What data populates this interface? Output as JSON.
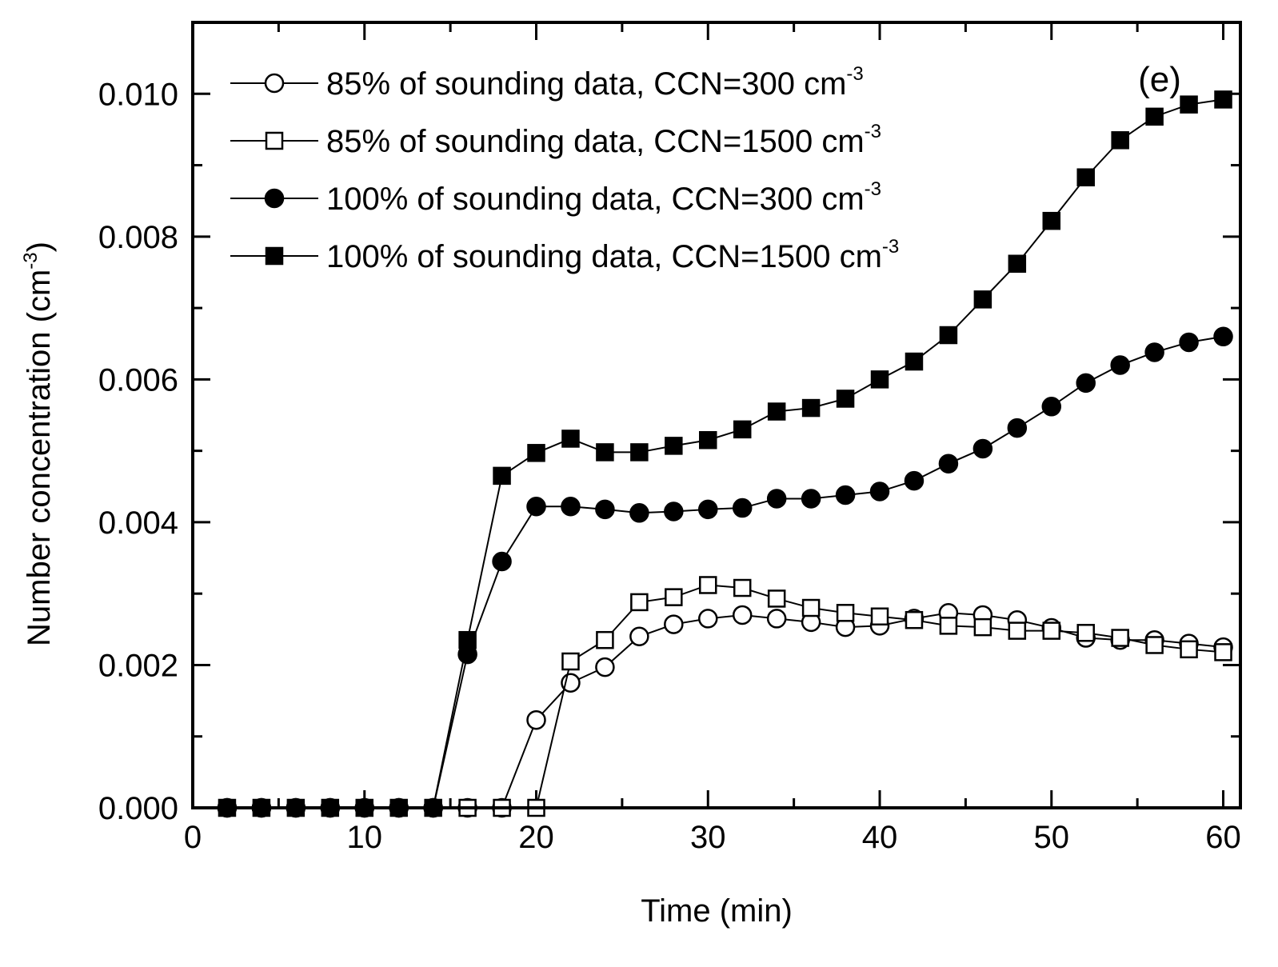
{
  "chart_data": {
    "type": "line",
    "panel_label": "(e)",
    "xlabel": "Time (min)",
    "ylabel": "Number concentration (cm",
    "ylabel_unit_exponent": "-3",
    "ylabel_close": ")",
    "xlim": [
      0,
      61
    ],
    "ylim": [
      0,
      0.011
    ],
    "xticks": [
      0,
      10,
      20,
      30,
      40,
      50,
      60
    ],
    "xtick_labels": [
      "0",
      "10",
      "20",
      "30",
      "40",
      "50",
      "60"
    ],
    "yticks": [
      0.0,
      0.002,
      0.004,
      0.006,
      0.008,
      0.01
    ],
    "ytick_labels": [
      "0.000",
      "0.002",
      "0.004",
      "0.006",
      "0.008",
      "0.010"
    ],
    "legend_position": "top-left",
    "series": [
      {
        "name": "85% of sounding data, CCN=300 cm",
        "unit_exponent": "-3",
        "marker": "circle-open",
        "x": [
          2,
          4,
          6,
          8,
          10,
          12,
          14,
          16,
          18,
          20,
          22,
          24,
          26,
          28,
          30,
          32,
          34,
          36,
          38,
          40,
          42,
          44,
          46,
          48,
          50,
          52,
          54,
          56,
          58,
          60
        ],
        "values": [
          0,
          0,
          0,
          0,
          0,
          0,
          0,
          0,
          0,
          0.00123,
          0.00175,
          0.00197,
          0.0024,
          0.00257,
          0.00265,
          0.0027,
          0.00265,
          0.0026,
          0.00253,
          0.00255,
          0.00265,
          0.00273,
          0.0027,
          0.00263,
          0.00252,
          0.00238,
          0.00235,
          0.00235,
          0.0023,
          0.00225
        ]
      },
      {
        "name": "85% of sounding data, CCN=1500 cm",
        "unit_exponent": "-3",
        "marker": "square-open",
        "x": [
          16,
          18,
          20,
          22,
          24,
          26,
          28,
          30,
          32,
          34,
          36,
          38,
          40,
          42,
          44,
          46,
          48,
          50,
          52,
          54,
          56,
          58,
          60
        ],
        "values": [
          0,
          0,
          0,
          0.00205,
          0.00235,
          0.00288,
          0.00295,
          0.00312,
          0.00308,
          0.00293,
          0.0028,
          0.00273,
          0.00268,
          0.00263,
          0.00255,
          0.00253,
          0.00248,
          0.00248,
          0.00245,
          0.00238,
          0.00228,
          0.00222,
          0.00218
        ]
      },
      {
        "name": "100% of sounding data, CCN=300 cm",
        "unit_exponent": "-3",
        "marker": "circle-filled",
        "x": [
          2,
          4,
          6,
          8,
          10,
          12,
          14,
          16,
          18,
          20,
          22,
          24,
          26,
          28,
          30,
          32,
          34,
          36,
          38,
          40,
          42,
          44,
          46,
          48,
          50,
          52,
          54,
          56,
          58,
          60
        ],
        "values": [
          0,
          0,
          0,
          0,
          0,
          0,
          0,
          0.00215,
          0.00345,
          0.00422,
          0.00422,
          0.00418,
          0.00413,
          0.00415,
          0.00418,
          0.0042,
          0.00433,
          0.00433,
          0.00438,
          0.00443,
          0.00458,
          0.00482,
          0.00503,
          0.00532,
          0.00562,
          0.00595,
          0.0062,
          0.00638,
          0.00652,
          0.0066
        ]
      },
      {
        "name": "100% of sounding data, CCN=1500 cm",
        "unit_exponent": "-3",
        "marker": "square-filled",
        "x": [
          2,
          4,
          6,
          8,
          10,
          12,
          14,
          16,
          18,
          20,
          22,
          24,
          26,
          28,
          30,
          32,
          34,
          36,
          38,
          40,
          42,
          44,
          46,
          48,
          50,
          52,
          54,
          56,
          58,
          60
        ],
        "values": [
          0,
          0,
          0,
          0,
          0,
          0,
          0,
          0.00235,
          0.00465,
          0.00497,
          0.00517,
          0.00498,
          0.00498,
          0.00507,
          0.00515,
          0.0053,
          0.00555,
          0.0056,
          0.00573,
          0.006,
          0.00625,
          0.00662,
          0.00712,
          0.00762,
          0.00822,
          0.00883,
          0.00935,
          0.00968,
          0.00985,
          0.00992
        ]
      }
    ]
  }
}
